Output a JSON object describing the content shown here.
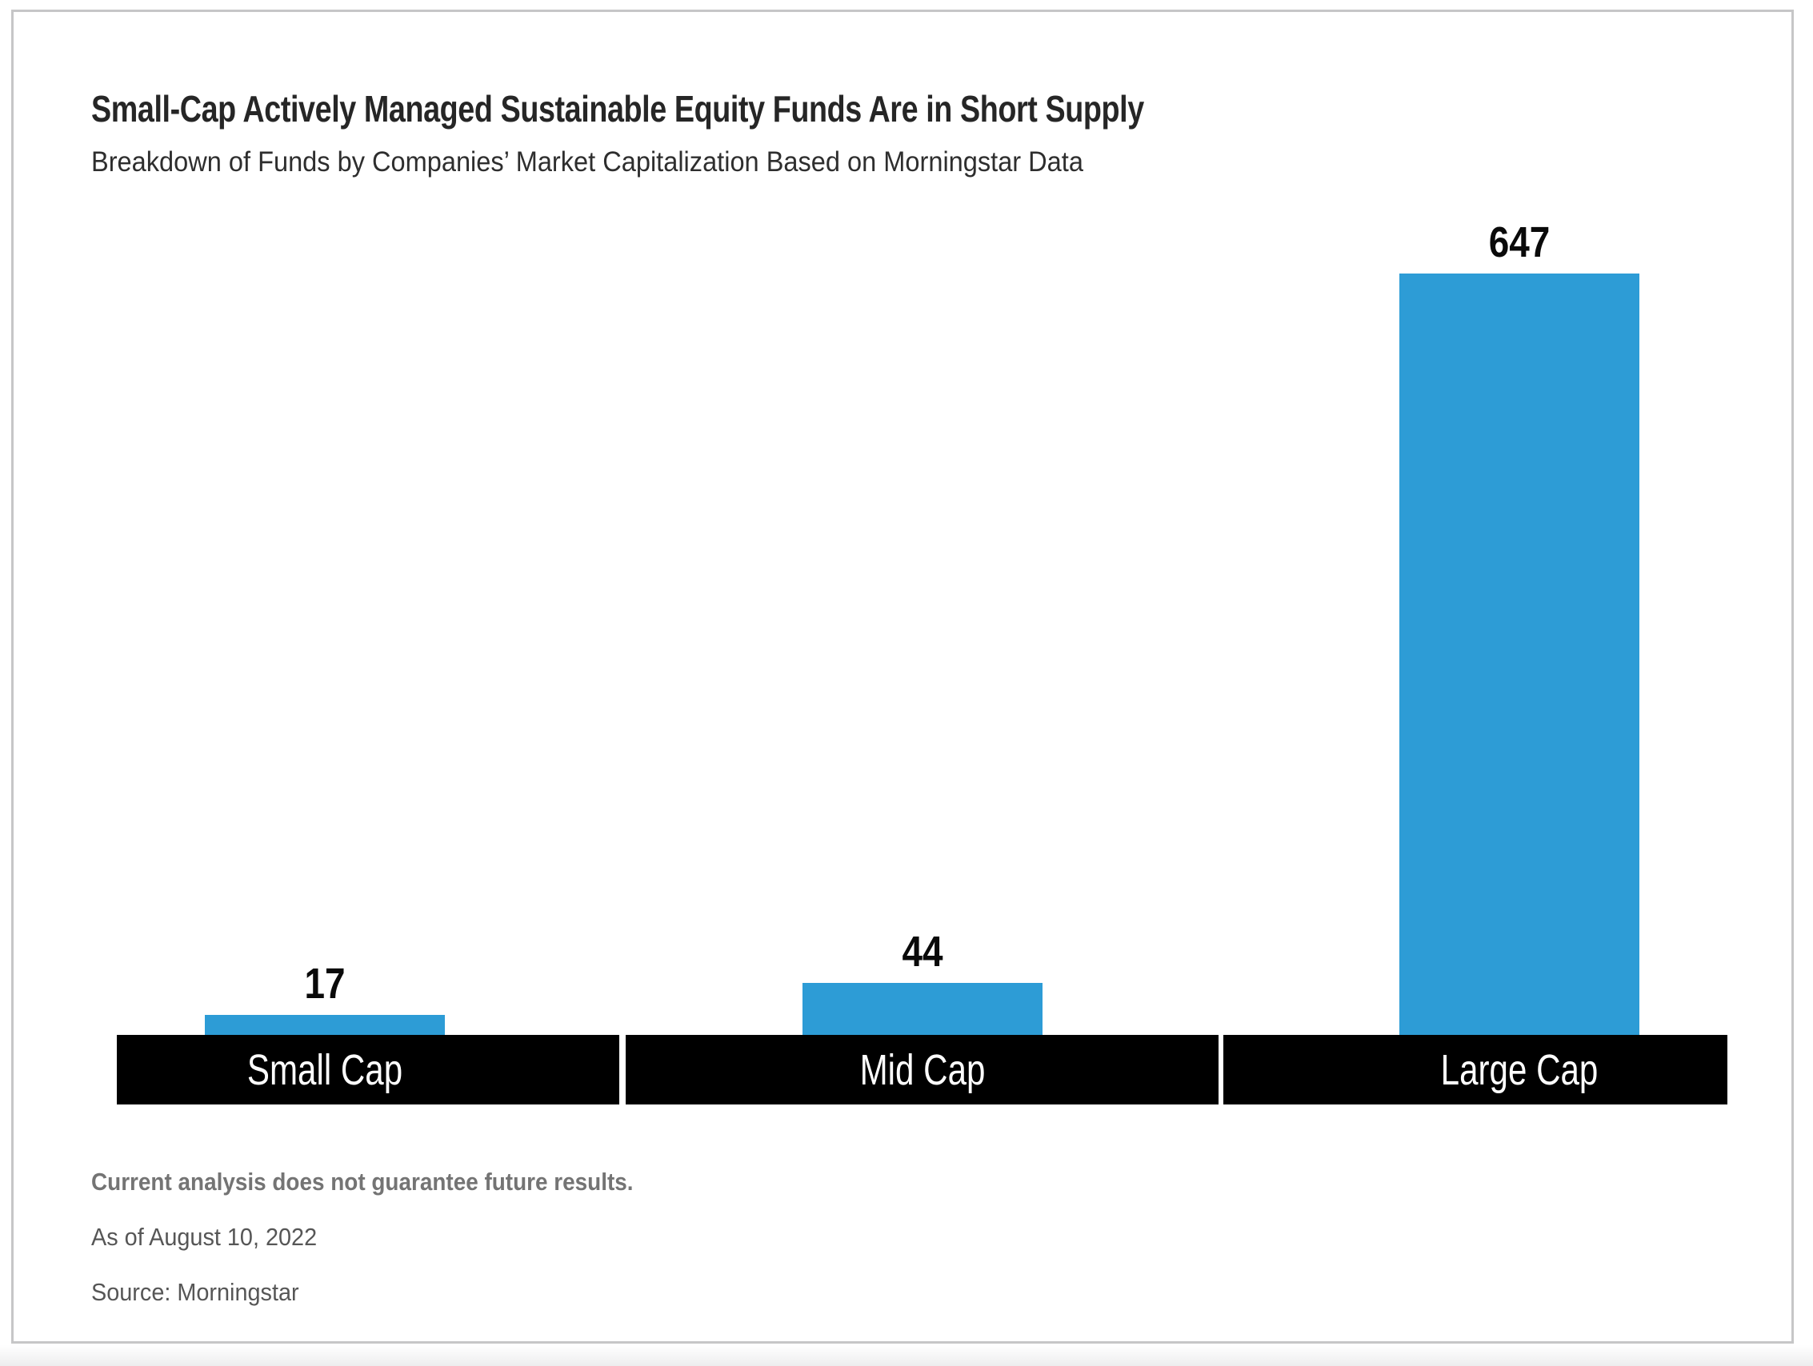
{
  "header": {
    "title": "Small-Cap Actively Managed Sustainable Equity Funds Are in Short Supply",
    "subtitle": "Breakdown of Funds by Companies’ Market Capitalization Based on Morningstar Data"
  },
  "chart_data": {
    "type": "bar",
    "categories": [
      "Small Cap",
      "Mid Cap",
      "Large Cap"
    ],
    "values": [
      17,
      44,
      647
    ],
    "title": "Small-Cap Actively Managed Sustainable Equity Funds Are in Short Supply",
    "subtitle": "Breakdown of Funds by Companies’ Market Capitalization Based on Morningstar Data",
    "xlabel": "",
    "ylabel": "",
    "ylim": [
      0,
      650
    ],
    "grid": false,
    "legend": false,
    "value_labels_shown": true,
    "bar_color": "#2d9cd6",
    "category_band_color": "#000000",
    "category_text_color": "#ffffff",
    "value_label_color": "#0a0a0a"
  },
  "footnotes": {
    "disclaimer": "Current analysis does not guarantee future results.",
    "as_of": "As of August 10, 2022",
    "source": "Source: Morningstar"
  }
}
